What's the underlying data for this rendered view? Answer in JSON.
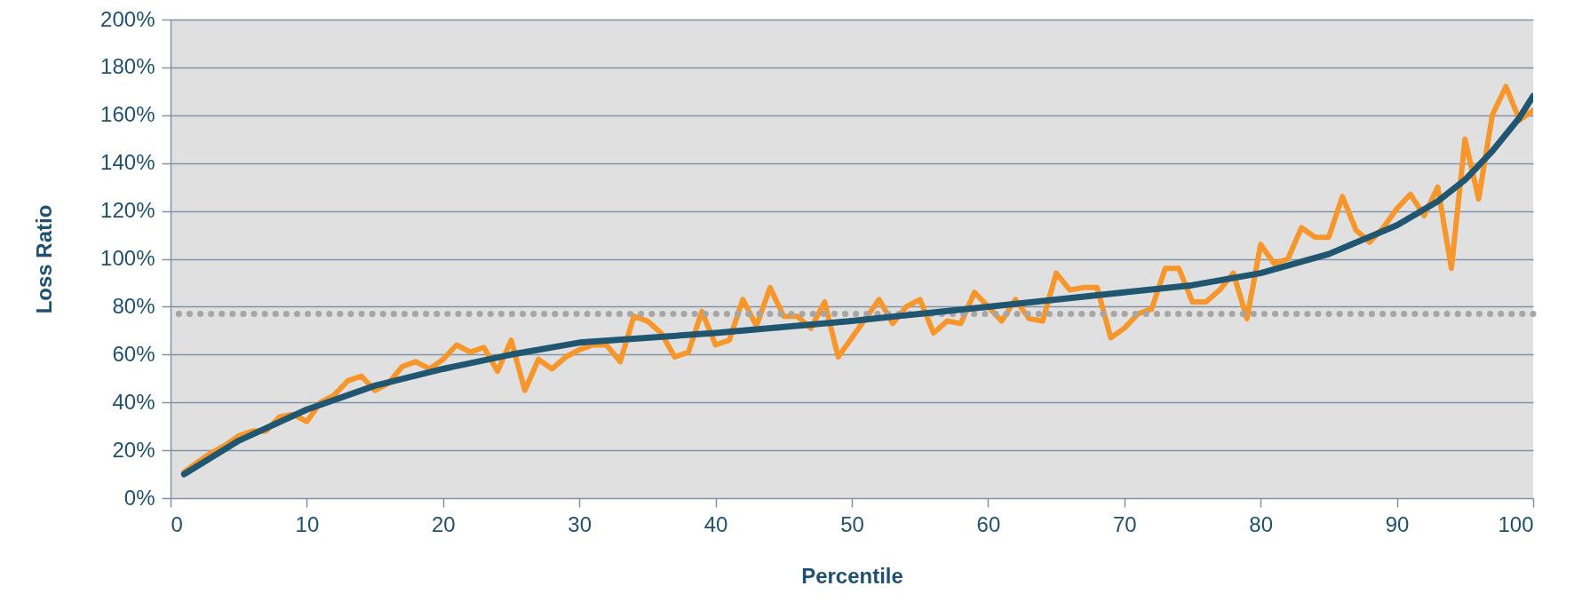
{
  "chart_data": {
    "type": "line",
    "xlabel": "Percentile",
    "ylabel": "Loss Ratio",
    "x": [
      1,
      2,
      3,
      4,
      5,
      6,
      7,
      8,
      9,
      10,
      11,
      12,
      13,
      14,
      15,
      16,
      17,
      18,
      19,
      20,
      21,
      22,
      23,
      24,
      25,
      26,
      27,
      28,
      29,
      30,
      31,
      32,
      33,
      34,
      35,
      36,
      37,
      38,
      39,
      40,
      41,
      42,
      43,
      44,
      45,
      46,
      47,
      48,
      49,
      50,
      51,
      52,
      53,
      54,
      55,
      56,
      57,
      58,
      59,
      60,
      61,
      62,
      63,
      64,
      65,
      66,
      67,
      68,
      69,
      70,
      71,
      72,
      73,
      74,
      75,
      76,
      77,
      78,
      79,
      80,
      81,
      82,
      83,
      84,
      85,
      86,
      87,
      88,
      89,
      90,
      91,
      92,
      93,
      94,
      95,
      96,
      97,
      98,
      99,
      100
    ],
    "series": [
      {
        "color": "#f7962a",
        "values": [
          11,
          15,
          19,
          22,
          26,
          28,
          28,
          34,
          35,
          32,
          40,
          43,
          49,
          51,
          45,
          48,
          55,
          57,
          54,
          58,
          64,
          61,
          63,
          53,
          66,
          45,
          58,
          54,
          59,
          62,
          64,
          64,
          57,
          76,
          74,
          69,
          59,
          61,
          78,
          64,
          66,
          83,
          72,
          88,
          76,
          76,
          71,
          82,
          59,
          67,
          75,
          83,
          73,
          80,
          83,
          69,
          74,
          73,
          86,
          80,
          74,
          83,
          75,
          74,
          94,
          87,
          88,
          88,
          67,
          71,
          77,
          79,
          96,
          96,
          82,
          82,
          87,
          94,
          75,
          106,
          98,
          100,
          113,
          109,
          109,
          126,
          112,
          107,
          113,
          121,
          127,
          118,
          130,
          96,
          150,
          125,
          160,
          172,
          158,
          162
        ]
      },
      {
        "type": "line",
        "color": "#215671",
        "x": [
          1,
          5,
          10,
          15,
          20,
          25,
          30,
          40,
          50,
          60,
          70,
          75,
          80,
          85,
          90,
          93,
          95,
          97,
          99,
          100
        ],
        "values": [
          10,
          24,
          37,
          47,
          54,
          60,
          65,
          69,
          74,
          80,
          86,
          89,
          94,
          102,
          114,
          124,
          133,
          145,
          159,
          168
        ]
      }
    ],
    "xlim": [
      0,
      100
    ],
    "xticks": [
      0,
      10,
      20,
      30,
      40,
      50,
      60,
      70,
      80,
      90,
      100
    ],
    "ylim": [
      0,
      200
    ],
    "yticks": [
      {
        "value": 0,
        "label": "0%"
      },
      {
        "value": 20,
        "label": "20%"
      },
      {
        "value": 40,
        "label": "40%"
      },
      {
        "value": 60,
        "label": "60%"
      },
      {
        "value": 80,
        "label": "80%"
      },
      {
        "value": 100,
        "label": "100%"
      },
      {
        "value": 120,
        "label": "120%"
      },
      {
        "value": 140,
        "label": "140%"
      },
      {
        "value": 160,
        "label": "160%"
      },
      {
        "value": 180,
        "label": "180%"
      },
      {
        "value": 200,
        "label": "200%"
      }
    ],
    "ref_lines": [
      {
        "axis": "y",
        "value": 77,
        "color": "#a6a6a6",
        "line_style": "dotted"
      }
    ],
    "grid": "y",
    "marker": "none",
    "line_style": "solid"
  }
}
